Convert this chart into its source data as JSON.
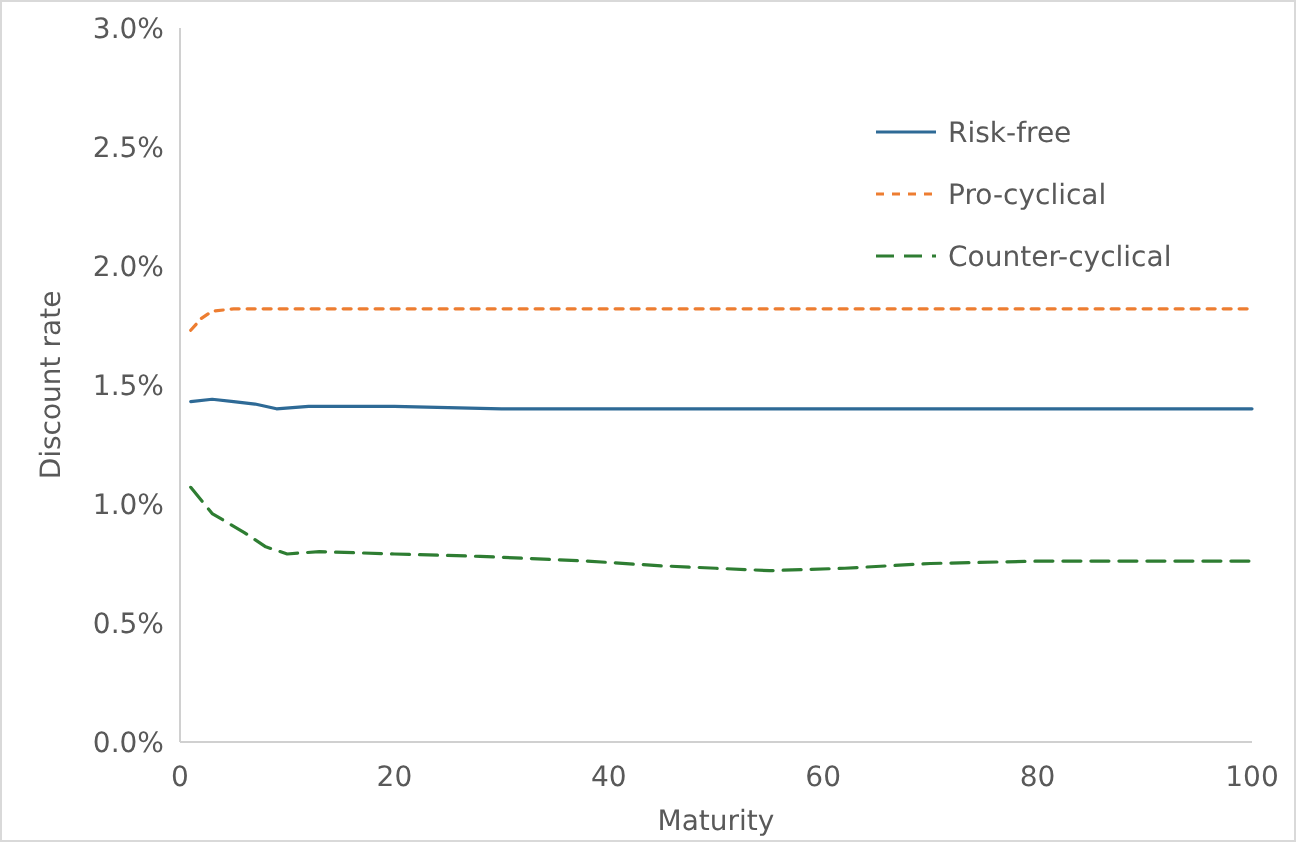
{
  "chart_data": {
    "type": "line",
    "xlabel": "Maturity",
    "ylabel": "Discount rate",
    "xlim": [
      0,
      100
    ],
    "xticks": [
      0,
      20,
      40,
      60,
      80,
      100
    ],
    "ylim": [
      0,
      3
    ],
    "yticks": [
      {
        "value": 0,
        "label": "0.0%"
      },
      {
        "value": 0.5,
        "label": "0.5%"
      },
      {
        "value": 1,
        "label": "1.0%"
      },
      {
        "value": 1.5,
        "label": "1.5%"
      },
      {
        "value": 2,
        "label": "2.0%"
      },
      {
        "value": 2.5,
        "label": "2.5%"
      },
      {
        "value": 3,
        "label": "3.0%"
      }
    ],
    "grid": false,
    "legend": "top right",
    "marker": "none",
    "series": [
      {
        "name": "Risk-free",
        "color": "#2e6a96",
        "line_style": "solid",
        "x": [
          1,
          3,
          5,
          7,
          9,
          12,
          20,
          30,
          40,
          50,
          60,
          70,
          80,
          90,
          100
        ],
        "values": [
          1.43,
          1.44,
          1.43,
          1.42,
          1.4,
          1.41,
          1.41,
          1.4,
          1.4,
          1.4,
          1.4,
          1.4,
          1.4,
          1.4,
          1.4
        ]
      },
      {
        "name": "Pro-cyclical",
        "color": "#ed7d31",
        "line_style": "dotted",
        "x": [
          1,
          2,
          3,
          5,
          10,
          20,
          40,
          60,
          80,
          100
        ],
        "values": [
          1.73,
          1.78,
          1.81,
          1.82,
          1.82,
          1.82,
          1.82,
          1.82,
          1.82,
          1.82
        ]
      },
      {
        "name": "Counter-cyclical",
        "color": "#2e7d32",
        "line_style": "dashed",
        "x": [
          1,
          3,
          6,
          8,
          10,
          13,
          20,
          28,
          38,
          45,
          50,
          55,
          62,
          70,
          80,
          90,
          100
        ],
        "values": [
          1.07,
          0.96,
          0.88,
          0.82,
          0.79,
          0.8,
          0.79,
          0.78,
          0.76,
          0.74,
          0.73,
          0.72,
          0.73,
          0.75,
          0.76,
          0.76,
          0.76
        ]
      }
    ]
  }
}
